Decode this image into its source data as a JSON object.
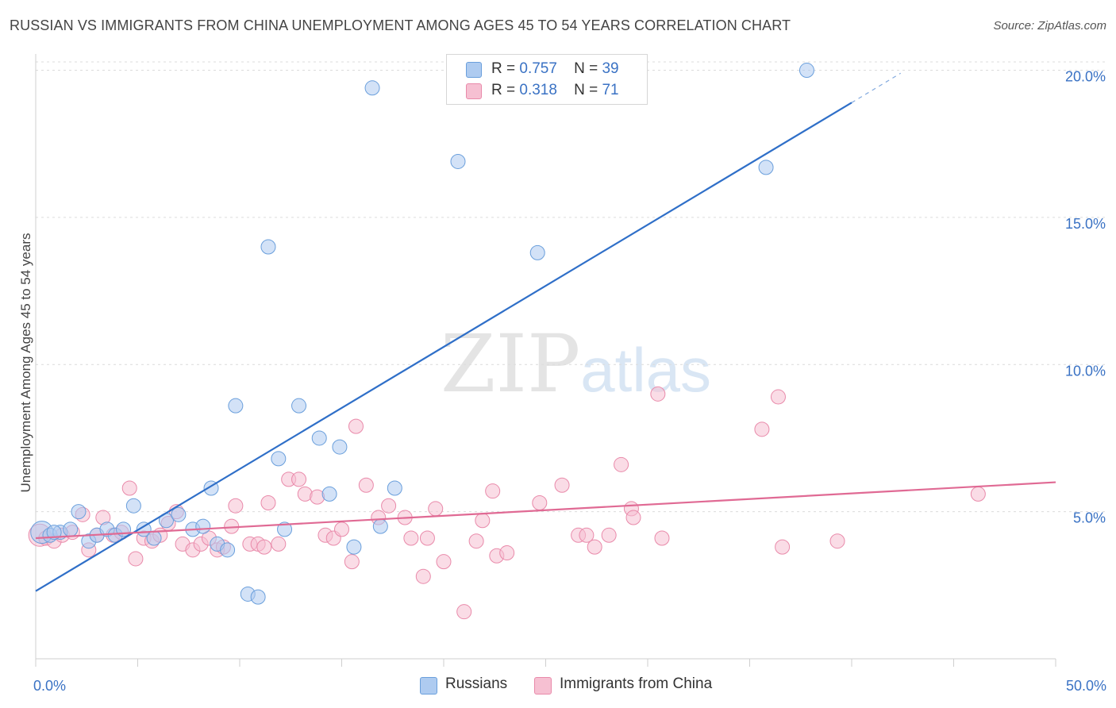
{
  "header": {
    "title": "RUSSIAN VS IMMIGRANTS FROM CHINA UNEMPLOYMENT AMONG AGES 45 TO 54 YEARS CORRELATION CHART",
    "source": "Source: ZipAtlas.com"
  },
  "watermark": {
    "zip": "ZIP",
    "atlas": "atlas"
  },
  "legend": {
    "russians": {
      "r_label": "R =",
      "r_value": "0.757",
      "n_label": "N =",
      "n_value": "39"
    },
    "china": {
      "r_label": "R =",
      "r_value": "0.318",
      "n_label": "N =",
      "n_value": "71"
    }
  },
  "bottom_legend": {
    "russians": "Russians",
    "china": "Immigrants from China"
  },
  "colors": {
    "russians_fill": "#aecbf0",
    "russians_stroke": "#6a9fdc",
    "russians_line": "#2f6fc8",
    "china_fill": "#f6c0d2",
    "china_stroke": "#e98aaa",
    "china_line": "#e06a94",
    "axis_label": "#3a72c4",
    "grid": "#dcdcdc"
  },
  "chart_data": {
    "type": "scatter",
    "title": "RUSSIAN VS IMMIGRANTS FROM CHINA UNEMPLOYMENT AMONG AGES 45 TO 54 YEARS CORRELATION CHART",
    "xlabel": "",
    "ylabel": "Unemployment Among Ages 45 to 54 years",
    "xlim": [
      0,
      50
    ],
    "ylim": [
      0,
      20.5
    ],
    "x_tick_labels": [
      {
        "value": 0,
        "label": "0.0%"
      },
      {
        "value": 50,
        "label": "50.0%"
      }
    ],
    "y_ticks": [
      {
        "value": 5,
        "label": "5.0%"
      },
      {
        "value": 10,
        "label": "10.0%"
      },
      {
        "value": 15,
        "label": "15.0%"
      },
      {
        "value": 20,
        "label": "20.0%"
      }
    ],
    "grid": true,
    "legend_position": "top-center",
    "series": [
      {
        "name": "Russians",
        "r": 0.757,
        "n": 39,
        "trend": {
          "x0": 0,
          "y0": 2.3,
          "x1": 40,
          "y1": 18.9,
          "dash_to_x": 42.4,
          "dash_to_y": 19.9
        },
        "points": [
          {
            "x": 0.3,
            "y": 4.3,
            "s": 14
          },
          {
            "x": 0.7,
            "y": 4.2,
            "s": 9
          },
          {
            "x": 1.2,
            "y": 4.3,
            "s": 9
          },
          {
            "x": 1.7,
            "y": 4.4,
            "s": 9
          },
          {
            "x": 2.1,
            "y": 5.0,
            "s": 9
          },
          {
            "x": 2.6,
            "y": 4.0,
            "s": 9
          },
          {
            "x": 3.0,
            "y": 4.2,
            "s": 9
          },
          {
            "x": 3.5,
            "y": 4.4,
            "s": 9
          },
          {
            "x": 3.9,
            "y": 4.2,
            "s": 9
          },
          {
            "x": 4.3,
            "y": 4.4,
            "s": 9
          },
          {
            "x": 4.8,
            "y": 5.2,
            "s": 9
          },
          {
            "x": 5.3,
            "y": 4.4,
            "s": 9
          },
          {
            "x": 5.8,
            "y": 4.1,
            "s": 9
          },
          {
            "x": 6.4,
            "y": 4.7,
            "s": 9
          },
          {
            "x": 7.0,
            "y": 4.9,
            "s": 9
          },
          {
            "x": 7.7,
            "y": 4.4,
            "s": 9
          },
          {
            "x": 8.2,
            "y": 4.5,
            "s": 9
          },
          {
            "x": 8.6,
            "y": 5.8,
            "s": 9
          },
          {
            "x": 8.9,
            "y": 3.9,
            "s": 9
          },
          {
            "x": 9.4,
            "y": 3.7,
            "s": 9
          },
          {
            "x": 9.8,
            "y": 8.6,
            "s": 9
          },
          {
            "x": 10.4,
            "y": 2.2,
            "s": 9
          },
          {
            "x": 10.9,
            "y": 2.1,
            "s": 9
          },
          {
            "x": 11.4,
            "y": 14.0,
            "s": 9
          },
          {
            "x": 11.9,
            "y": 6.8,
            "s": 9
          },
          {
            "x": 12.2,
            "y": 4.4,
            "s": 9
          },
          {
            "x": 12.9,
            "y": 8.6,
            "s": 9
          },
          {
            "x": 13.9,
            "y": 7.5,
            "s": 9
          },
          {
            "x": 14.4,
            "y": 5.6,
            "s": 9
          },
          {
            "x": 14.9,
            "y": 7.2,
            "s": 9
          },
          {
            "x": 15.6,
            "y": 3.8,
            "s": 9
          },
          {
            "x": 16.5,
            "y": 19.4,
            "s": 9
          },
          {
            "x": 16.9,
            "y": 4.5,
            "s": 9
          },
          {
            "x": 17.6,
            "y": 5.8,
            "s": 9
          },
          {
            "x": 20.7,
            "y": 16.9,
            "s": 9
          },
          {
            "x": 24.6,
            "y": 13.8,
            "s": 9
          },
          {
            "x": 35.8,
            "y": 16.7,
            "s": 9
          },
          {
            "x": 37.8,
            "y": 20.0,
            "s": 9
          },
          {
            "x": 0.9,
            "y": 4.3,
            "s": 9
          }
        ]
      },
      {
        "name": "Immigrants from China",
        "r": 0.318,
        "n": 71,
        "trend": {
          "x0": 0,
          "y0": 4.1,
          "x1": 50,
          "y1": 6.0
        },
        "points": [
          {
            "x": 0.2,
            "y": 4.2,
            "s": 14
          },
          {
            "x": 0.5,
            "y": 4.1,
            "s": 9
          },
          {
            "x": 0.9,
            "y": 4.0,
            "s": 9
          },
          {
            "x": 1.3,
            "y": 4.2,
            "s": 9
          },
          {
            "x": 1.8,
            "y": 4.3,
            "s": 9
          },
          {
            "x": 2.3,
            "y": 4.9,
            "s": 9
          },
          {
            "x": 2.6,
            "y": 3.7,
            "s": 9
          },
          {
            "x": 3.0,
            "y": 4.2,
            "s": 9
          },
          {
            "x": 3.3,
            "y": 4.8,
            "s": 9
          },
          {
            "x": 3.8,
            "y": 4.2,
            "s": 9
          },
          {
            "x": 4.2,
            "y": 4.3,
            "s": 9
          },
          {
            "x": 4.6,
            "y": 5.8,
            "s": 9
          },
          {
            "x": 4.9,
            "y": 3.4,
            "s": 9
          },
          {
            "x": 5.3,
            "y": 4.1,
            "s": 9
          },
          {
            "x": 5.7,
            "y": 4.0,
            "s": 9
          },
          {
            "x": 6.1,
            "y": 4.2,
            "s": 9
          },
          {
            "x": 6.5,
            "y": 4.6,
            "s": 9
          },
          {
            "x": 6.9,
            "y": 5.0,
            "s": 9
          },
          {
            "x": 7.2,
            "y": 3.9,
            "s": 9
          },
          {
            "x": 7.7,
            "y": 3.7,
            "s": 9
          },
          {
            "x": 8.1,
            "y": 3.9,
            "s": 9
          },
          {
            "x": 8.5,
            "y": 4.1,
            "s": 9
          },
          {
            "x": 8.9,
            "y": 3.7,
            "s": 9
          },
          {
            "x": 9.2,
            "y": 3.8,
            "s": 9
          },
          {
            "x": 9.6,
            "y": 4.5,
            "s": 9
          },
          {
            "x": 9.8,
            "y": 5.2,
            "s": 9
          },
          {
            "x": 10.5,
            "y": 3.9,
            "s": 9
          },
          {
            "x": 10.9,
            "y": 3.9,
            "s": 9
          },
          {
            "x": 11.2,
            "y": 3.8,
            "s": 9
          },
          {
            "x": 11.4,
            "y": 5.3,
            "s": 9
          },
          {
            "x": 11.9,
            "y": 3.9,
            "s": 9
          },
          {
            "x": 12.4,
            "y": 6.1,
            "s": 9
          },
          {
            "x": 12.9,
            "y": 6.1,
            "s": 9
          },
          {
            "x": 13.2,
            "y": 5.6,
            "s": 9
          },
          {
            "x": 13.8,
            "y": 5.5,
            "s": 9
          },
          {
            "x": 14.2,
            "y": 4.2,
            "s": 9
          },
          {
            "x": 14.6,
            "y": 4.1,
            "s": 9
          },
          {
            "x": 15.0,
            "y": 4.4,
            "s": 9
          },
          {
            "x": 15.5,
            "y": 3.3,
            "s": 9
          },
          {
            "x": 15.7,
            "y": 7.9,
            "s": 9
          },
          {
            "x": 16.2,
            "y": 5.9,
            "s": 9
          },
          {
            "x": 16.8,
            "y": 4.8,
            "s": 9
          },
          {
            "x": 17.3,
            "y": 5.2,
            "s": 9
          },
          {
            "x": 18.1,
            "y": 4.8,
            "s": 9
          },
          {
            "x": 18.4,
            "y": 4.1,
            "s": 9
          },
          {
            "x": 19.0,
            "y": 2.8,
            "s": 9
          },
          {
            "x": 19.2,
            "y": 4.1,
            "s": 9
          },
          {
            "x": 19.6,
            "y": 5.1,
            "s": 9
          },
          {
            "x": 20.0,
            "y": 3.3,
            "s": 9
          },
          {
            "x": 21.0,
            "y": 1.6,
            "s": 9
          },
          {
            "x": 21.6,
            "y": 4.0,
            "s": 9
          },
          {
            "x": 21.9,
            "y": 4.7,
            "s": 9
          },
          {
            "x": 22.4,
            "y": 5.7,
            "s": 9
          },
          {
            "x": 22.6,
            "y": 3.5,
            "s": 9
          },
          {
            "x": 23.1,
            "y": 3.6,
            "s": 9
          },
          {
            "x": 24.7,
            "y": 5.3,
            "s": 9
          },
          {
            "x": 25.8,
            "y": 5.9,
            "s": 9
          },
          {
            "x": 26.6,
            "y": 4.2,
            "s": 9
          },
          {
            "x": 27.0,
            "y": 4.2,
            "s": 9
          },
          {
            "x": 27.4,
            "y": 3.8,
            "s": 9
          },
          {
            "x": 28.1,
            "y": 4.2,
            "s": 9
          },
          {
            "x": 28.7,
            "y": 6.6,
            "s": 9
          },
          {
            "x": 29.2,
            "y": 5.1,
            "s": 9
          },
          {
            "x": 29.3,
            "y": 4.8,
            "s": 9
          },
          {
            "x": 30.5,
            "y": 9.0,
            "s": 9
          },
          {
            "x": 30.7,
            "y": 4.1,
            "s": 9
          },
          {
            "x": 35.6,
            "y": 7.8,
            "s": 9
          },
          {
            "x": 36.4,
            "y": 8.9,
            "s": 9
          },
          {
            "x": 36.6,
            "y": 3.8,
            "s": 9
          },
          {
            "x": 39.3,
            "y": 4.0,
            "s": 9
          },
          {
            "x": 46.2,
            "y": 5.6,
            "s": 9
          }
        ]
      }
    ]
  }
}
